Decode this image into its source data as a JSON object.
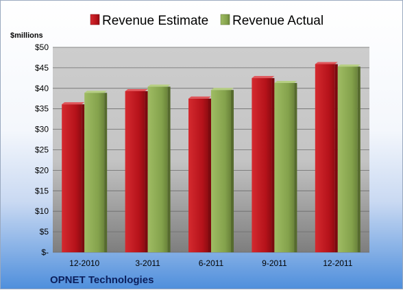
{
  "chart_data": {
    "type": "bar",
    "categories": [
      "12-2010",
      "3-2011",
      "6-2011",
      "9-2011",
      "12-2011"
    ],
    "series": [
      {
        "name": "Revenue Estimate",
        "color": "#c0161c",
        "values": [
          36.6,
          39.8,
          38.0,
          43.0,
          46.4
        ]
      },
      {
        "name": "Revenue Actual",
        "color": "#8dab52",
        "values": [
          39.4,
          40.9,
          40.1,
          41.8,
          45.8
        ]
      }
    ],
    "ylabel": "$millions",
    "ylim": [
      0,
      50
    ],
    "yticks": [
      0,
      5,
      10,
      15,
      20,
      25,
      30,
      35,
      40,
      45,
      50
    ],
    "ytick_labels": [
      "$-",
      "$5",
      "$10",
      "$15",
      "$20",
      "$25",
      "$30",
      "$35",
      "$40",
      "$45",
      "$50"
    ],
    "legend_position": "top",
    "grid": true
  },
  "footer": {
    "company": "OPNET Technologies"
  }
}
